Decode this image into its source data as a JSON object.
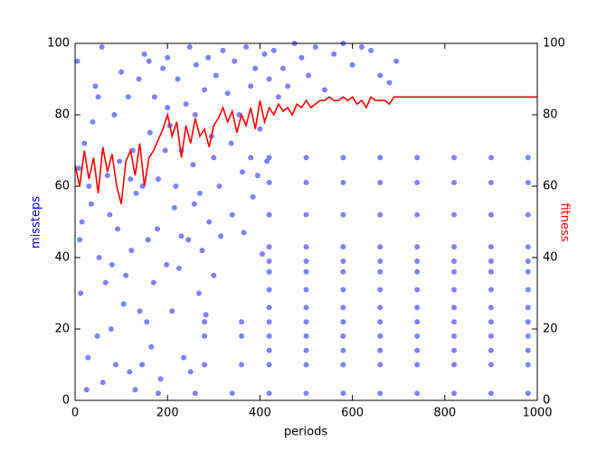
{
  "chart_data": {
    "type": "scatter",
    "xlabel": "periods",
    "ylabel": "missteps",
    "y2label": "fitness",
    "ylabel_color": "#0000ff",
    "y2label_color": "#ff0000",
    "xlim": [
      0,
      1000
    ],
    "xticks": [
      0,
      200,
      400,
      600,
      800,
      1000
    ],
    "ylim": [
      0,
      100
    ],
    "yticks": [
      0,
      20,
      40,
      60,
      80,
      100
    ],
    "y2lim": [
      0,
      100
    ],
    "y2ticks": [
      0,
      20,
      40,
      60,
      80,
      100
    ],
    "series": [
      {
        "type": "scatter",
        "color": "#8080ff",
        "x": [
          5,
          12,
          20,
          28,
          35,
          44,
          52,
          60,
          70,
          78,
          85,
          92,
          100,
          110,
          118,
          125,
          132,
          140,
          150,
          158,
          165,
          172,
          180,
          190,
          198,
          205,
          215,
          222,
          230,
          240,
          248,
          255,
          262,
          270,
          280,
          288,
          295,
          305,
          312,
          320,
          330,
          338,
          345,
          355,
          362,
          370,
          380,
          390,
          400,
          410,
          420,
          430,
          440,
          450,
          460,
          475,
          490,
          505,
          520,
          540,
          560,
          580,
          600,
          620,
          640,
          660,
          680,
          695,
          8,
          15,
          25,
          38,
          48,
          58,
          66,
          75,
          88,
          96,
          105,
          115,
          122,
          130,
          138,
          146,
          155,
          162,
          170,
          178,
          185,
          195,
          210,
          225,
          235,
          245,
          258,
          268,
          275,
          290,
          300,
          315,
          10,
          30,
          50,
          80,
          120,
          145,
          160,
          200,
          230,
          260,
          340,
          365,
          385,
          395,
          405,
          415,
          200,
          218,
          250,
          283,
          300,
          380,
          420,
          500,
          580,
          660,
          740,
          820,
          900,
          980,
          420,
          500,
          580,
          660,
          740,
          820,
          900,
          980,
          420,
          500,
          580,
          660,
          740,
          820,
          900,
          980,
          420,
          500,
          580,
          660,
          740,
          820,
          900,
          980,
          420,
          500,
          580,
          660,
          740,
          820,
          900,
          980,
          420,
          500,
          580,
          660,
          740,
          820,
          900,
          980,
          420,
          500,
          580,
          660,
          740,
          820,
          900,
          980,
          420,
          500,
          580,
          660,
          740,
          820,
          900,
          980,
          280,
          360,
          420,
          500,
          580,
          660,
          740,
          820,
          900,
          980,
          280,
          360,
          420,
          500,
          580,
          660,
          740,
          820,
          900,
          980,
          420,
          500,
          580,
          660,
          740,
          820,
          900,
          980,
          280,
          360,
          420,
          500,
          580,
          660,
          740,
          820,
          900,
          980,
          180,
          260,
          340,
          420,
          500,
          580,
          660,
          740,
          820,
          900,
          980
        ],
        "values": [
          95,
          30,
          72,
          12,
          55,
          88,
          40,
          5,
          63,
          20,
          80,
          48,
          92,
          35,
          8,
          70,
          58,
          25,
          97,
          45,
          15,
          85,
          62,
          93,
          38,
          77,
          54,
          90,
          46,
          83,
          99,
          66,
          94,
          58,
          87,
          96,
          74,
          91,
          60,
          98,
          86,
          72,
          95,
          80,
          64,
          99,
          88,
          93,
          76,
          97,
          90,
          98,
          85,
          93,
          88,
          100,
          96,
          91,
          99,
          87,
          97,
          100,
          94,
          99,
          98,
          91,
          89,
          95,
          65,
          50,
          3,
          78,
          18,
          99,
          33,
          52,
          10,
          67,
          27,
          85,
          42,
          3,
          90,
          60,
          22,
          75,
          33,
          48,
          6,
          70,
          25,
          37,
          12,
          45,
          55,
          30,
          42,
          50,
          35,
          46,
          45,
          60,
          85,
          38,
          62,
          10,
          95,
          82,
          70,
          80,
          52,
          47,
          57,
          63,
          41,
          67,
          96,
          60,
          8,
          24,
          68,
          68,
          68,
          68,
          68,
          68,
          68,
          68,
          68,
          68,
          61,
          61,
          61,
          61,
          61,
          61,
          61,
          61,
          52,
          52,
          52,
          52,
          52,
          52,
          52,
          52,
          43,
          43,
          43,
          43,
          43,
          43,
          43,
          43,
          39,
          39,
          39,
          39,
          39,
          39,
          39,
          39,
          36,
          36,
          36,
          36,
          36,
          36,
          36,
          36,
          31,
          31,
          31,
          31,
          31,
          31,
          31,
          31,
          26,
          26,
          26,
          26,
          26,
          26,
          26,
          26,
          22,
          22,
          22,
          22,
          22,
          22,
          22,
          22,
          22,
          22,
          18,
          18,
          18,
          18,
          18,
          18,
          18,
          18,
          18,
          18,
          14,
          14,
          14,
          14,
          14,
          14,
          14,
          14,
          10,
          10,
          10,
          10,
          10,
          10,
          10,
          10,
          10,
          10,
          2,
          2,
          2,
          2,
          2,
          2,
          2,
          2,
          2,
          2,
          2
        ]
      },
      {
        "type": "line",
        "axis": "y2",
        "color": "#ff0000",
        "x": [
          0,
          10,
          20,
          30,
          40,
          50,
          60,
          70,
          80,
          90,
          100,
          110,
          120,
          130,
          140,
          150,
          160,
          170,
          180,
          190,
          200,
          210,
          220,
          230,
          240,
          250,
          260,
          270,
          280,
          290,
          300,
          310,
          320,
          330,
          340,
          350,
          360,
          370,
          380,
          390,
          400,
          410,
          420,
          430,
          440,
          450,
          460,
          470,
          480,
          490,
          500,
          510,
          520,
          530,
          540,
          550,
          560,
          570,
          580,
          590,
          600,
          610,
          620,
          630,
          640,
          650,
          660,
          670,
          680,
          690,
          700,
          1000
        ],
        "values": [
          66,
          60,
          70,
          62,
          68,
          58,
          71,
          64,
          69,
          60,
          55,
          67,
          70,
          63,
          72,
          60,
          68,
          70,
          73,
          76,
          80,
          74,
          78,
          68,
          77,
          72,
          79,
          74,
          76,
          71,
          77,
          79,
          82,
          78,
          81,
          75,
          80,
          77,
          82,
          76,
          84,
          78,
          82,
          80,
          83,
          81,
          82,
          80,
          83,
          82,
          84,
          82,
          83,
          84,
          84,
          85,
          84,
          84,
          85,
          84,
          85,
          83,
          84,
          82,
          85,
          84,
          84,
          84,
          83,
          85,
          85,
          85
        ]
      }
    ]
  }
}
